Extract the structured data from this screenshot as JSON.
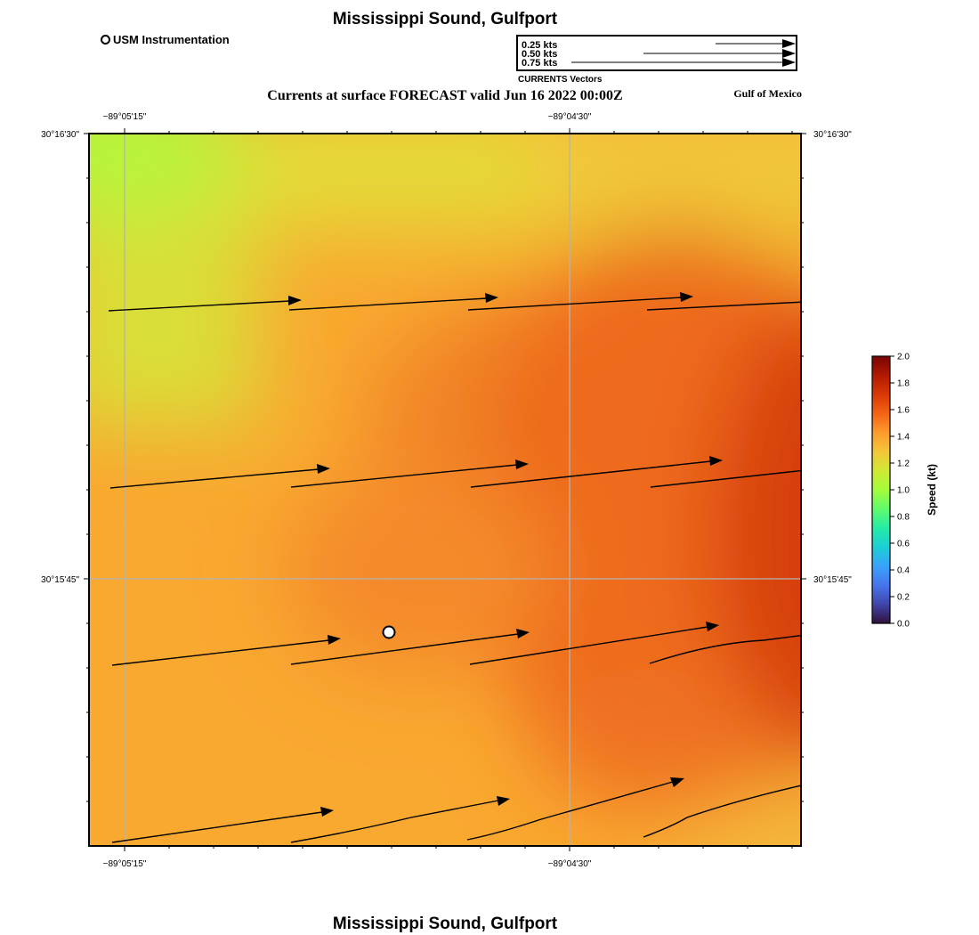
{
  "header": {
    "title": "Mississippi Sound, Gulfport",
    "subtitle": "Currents at surface FORECAST valid Jun 16 2022 00:00Z",
    "region_label": "Gulf of Mexico",
    "footer_title": "Mississippi Sound, Gulfport"
  },
  "station_legend": {
    "label": "USM Instrumentation"
  },
  "vector_legend": {
    "caption": "CURRENTS Vectors",
    "entries": [
      {
        "label": "0.25 kts",
        "speed": 0.25
      },
      {
        "label": "0.50 kts",
        "speed": 0.5
      },
      {
        "label": "0.75 kts",
        "speed": 0.75
      }
    ]
  },
  "map": {
    "lon_ticks": [
      "−89°05'15\"",
      "−89°04'30\""
    ],
    "lat_ticks": [
      "30°16'30\"",
      "30°15'45\""
    ],
    "grid_color": "#b4b4b4",
    "station": {
      "name": "USM Instrumentation"
    }
  },
  "colorbar": {
    "label": "Speed (kt)",
    "min": 0.0,
    "max": 2.0,
    "ticks": [
      "0.0",
      "0.2",
      "0.4",
      "0.6",
      "0.8",
      "1.0",
      "1.2",
      "1.4",
      "1.6",
      "1.8",
      "2.0"
    ],
    "colors": [
      "#30123b",
      "#4145ab",
      "#4675ed",
      "#39a2fc",
      "#1bcfd4",
      "#24eca6",
      "#61fc6c",
      "#a4fc3b",
      "#d1e834",
      "#f3c63a",
      "#fe9b2d",
      "#f36315",
      "#d93806",
      "#b11901",
      "#7a0403"
    ]
  }
}
